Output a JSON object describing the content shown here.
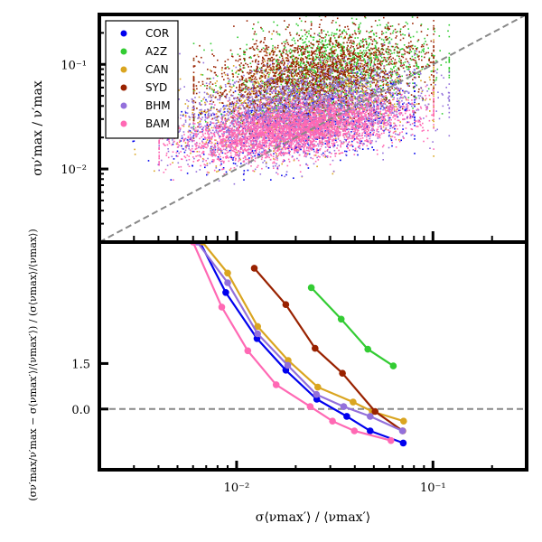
{
  "chart_data": [
    {
      "type": "scatter",
      "title": "",
      "xscale": "log",
      "yscale": "log",
      "xlim": [
        0.002,
        0.3
      ],
      "ylim": [
        0.002,
        0.3
      ],
      "ytick_labels": [
        {
          "value": 0.01,
          "label": "10⁻²"
        },
        {
          "value": 0.1,
          "label": "10⁻¹"
        }
      ],
      "ylabel": "σν′max / ν′max",
      "reference_line": "y = x",
      "legend_position": "top-left",
      "series": [
        {
          "name": "COR",
          "color": "#0000ee",
          "x_range": [
            0.002,
            0.08
          ],
          "y_range": [
            0.008,
            0.09
          ],
          "x_center": 0.022,
          "y_center": 0.028
        },
        {
          "name": "A2Z",
          "color": "#33cc33",
          "x_range": [
            0.006,
            0.12
          ],
          "y_range": [
            0.02,
            0.3
          ],
          "x_center": 0.03,
          "y_center": 0.09
        },
        {
          "name": "CAN",
          "color": "#daa520",
          "x_range": [
            0.003,
            0.1
          ],
          "y_range": [
            0.008,
            0.2
          ],
          "x_center": 0.02,
          "y_center": 0.04
        },
        {
          "name": "SYD",
          "color": "#992200",
          "x_range": [
            0.006,
            0.1
          ],
          "y_range": [
            0.02,
            0.3
          ],
          "x_center": 0.025,
          "y_center": 0.08
        },
        {
          "name": "BHM",
          "color": "#9370db",
          "x_range": [
            0.004,
            0.12
          ],
          "y_range": [
            0.004,
            0.2
          ],
          "x_center": 0.02,
          "y_center": 0.035
        },
        {
          "name": "BAM",
          "color": "#ff69b4",
          "x_range": [
            0.004,
            0.1
          ],
          "y_range": [
            0.006,
            0.1
          ],
          "x_center": 0.02,
          "y_center": 0.024
        }
      ]
    },
    {
      "type": "line",
      "title": "",
      "xscale": "log",
      "xlim": [
        0.002,
        0.3
      ],
      "ylim": [
        -2.0,
        5.5
      ],
      "xtick_labels": [
        {
          "value": 0.01,
          "label": "10⁻²"
        },
        {
          "value": 0.1,
          "label": "10⁻¹"
        }
      ],
      "ytick_labels": [
        {
          "value": 0.0,
          "label": "0.0"
        },
        {
          "value": 1.5,
          "label": "1.5"
        }
      ],
      "xlabel": "σ⟨νmax′⟩ / ⟨νmax′⟩",
      "ylabel": "(σν′max/ν′max − σ⟨νmax′⟩/⟨νmax′⟩) / (σ⟨νmax⟩/⟨νmax⟩)",
      "reference_line": "y = 0",
      "series": [
        {
          "name": "COR",
          "color": "#0000ee",
          "x": [
            0.0065,
            0.0088,
            0.0127,
            0.0178,
            0.0256,
            0.0364,
            0.0479,
            0.0706
          ],
          "y": [
            5.5,
            3.84,
            2.32,
            1.28,
            0.32,
            -0.24,
            -0.72,
            -1.12
          ]
        },
        {
          "name": "A2Z",
          "color": "#33cc33",
          "x": [
            0.024,
            0.0341,
            0.0466,
            0.0628
          ],
          "y": [
            4.0,
            2.96,
            1.97,
            1.42
          ]
        },
        {
          "name": "CAN",
          "color": "#daa520",
          "x": [
            0.0067,
            0.009,
            0.0128,
            0.0183,
            0.0259,
            0.0392,
            0.0491,
            0.0709
          ],
          "y": [
            5.5,
            4.48,
            2.72,
            1.6,
            0.72,
            0.23,
            -0.08,
            -0.4
          ]
        },
        {
          "name": "SYD",
          "color": "#992200",
          "x": [
            0.0123,
            0.0178,
            0.0251,
            0.0346,
            0.0507,
            0.0701
          ],
          "y": [
            4.64,
            3.44,
            2.0,
            1.18,
            -0.08,
            -0.72
          ]
        },
        {
          "name": "BHM",
          "color": "#9370db",
          "x": [
            0.0063,
            0.009,
            0.0128,
            0.0182,
            0.0255,
            0.0351,
            0.0479,
            0.0699
          ],
          "y": [
            5.5,
            4.16,
            2.48,
            1.44,
            0.48,
            0.08,
            -0.24,
            -0.72
          ]
        },
        {
          "name": "BAM",
          "color": "#ff69b4",
          "x": [
            0.006,
            0.0084,
            0.0114,
            0.0159,
            0.0237,
            0.0308,
            0.0398,
            0.0611
          ],
          "y": [
            5.5,
            3.36,
            1.92,
            0.8,
            0.08,
            -0.4,
            -0.72,
            -1.04
          ]
        }
      ]
    }
  ]
}
